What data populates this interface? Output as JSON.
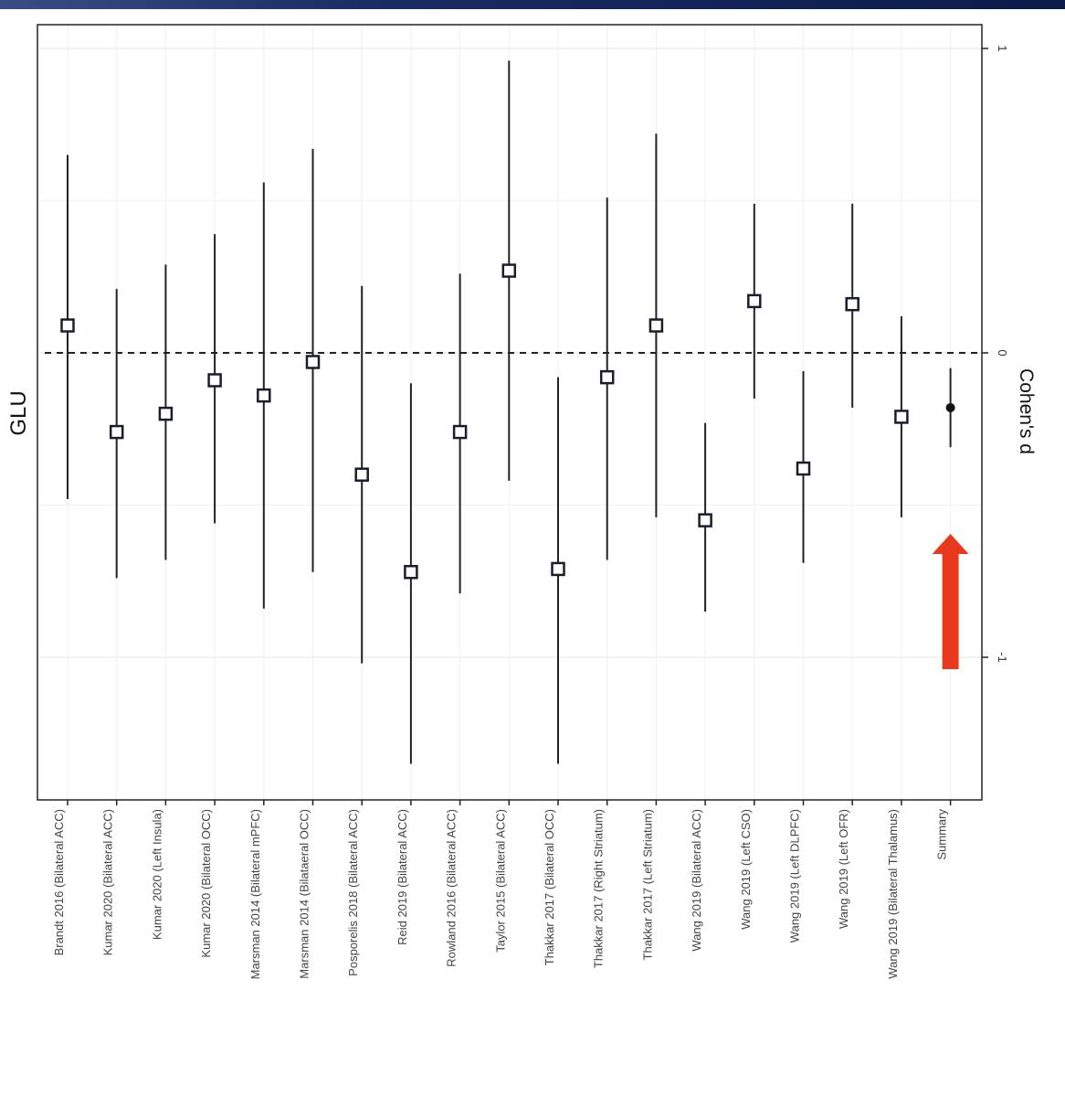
{
  "chart_data": {
    "type": "scatter",
    "subtype": "forest-plot",
    "orientation": "rotated-90-clockwise",
    "title": "GLU",
    "ylabel": "Cohen's d",
    "xlabel": "",
    "ylim": [
      -1.45,
      1.1
    ],
    "yticks": [
      1,
      0,
      -1
    ],
    "ytick_labels": [
      "1",
      "0",
      "-1"
    ],
    "reference_line": 0,
    "grid": true,
    "categories": [
      "Brandt 2016 (Bilateral ACC)",
      "Kumar 2020 (Bilateral ACC)",
      "Kumar 2020 (Left Insula)",
      "Kumar 2020 (Bilateral OCC)",
      "Marsman 2014 (Bilateral mPFC)",
      "Marsman 2014 (Bilataeral OCC)",
      "Posporelis 2018 (Bilateral ACC)",
      "Reid 2019 (Bilateral ACC)",
      "Rowland 2016 (Bilateral ACC)",
      "Taylor 2015 (Bilateral ACC)",
      "Thakkar 2017 (Bilateral OCC)",
      "Thakkar 2017 (Right Striatum)",
      "Thakkar 2017 (Left Striatum)",
      "Wang 2019 (Bilateral ACC)",
      "Wang 2019 (Left CSO)",
      "Wang 2019 (Left DLPFC)",
      "Wang 2019 (Left OFR)",
      "Wang 2019 (Bilateral Thalamus)",
      "Summary"
    ],
    "series": [
      {
        "estimate": [
          0.09,
          -0.26,
          -0.2,
          -0.09,
          -0.14,
          -0.03,
          -0.4,
          -0.72,
          -0.26,
          0.27,
          -0.71,
          -0.08,
          0.09,
          -0.55,
          0.17,
          -0.38,
          0.16,
          -0.21,
          -0.18
        ],
        "lower": [
          -0.48,
          -0.74,
          -0.68,
          -0.56,
          -0.84,
          -0.72,
          -1.02,
          -1.35,
          -0.79,
          -0.42,
          -1.35,
          -0.68,
          -0.54,
          -0.85,
          -0.15,
          -0.69,
          -0.18,
          -0.54,
          -0.31
        ],
        "upper": [
          0.65,
          0.21,
          0.29,
          0.39,
          0.56,
          0.67,
          0.22,
          -0.1,
          0.26,
          0.96,
          -0.08,
          0.51,
          0.72,
          -0.23,
          0.49,
          -0.06,
          0.49,
          0.12,
          -0.05
        ],
        "marker": [
          "square",
          "square",
          "square",
          "square",
          "square",
          "square",
          "square",
          "square",
          "square",
          "square",
          "square",
          "square",
          "square",
          "square",
          "square",
          "square",
          "square",
          "square",
          "dot"
        ]
      }
    ]
  },
  "annotations": {
    "arrow_color": "#e8391f",
    "arrow_points_to": "Summary"
  },
  "colors": {
    "top_band": "#1b2b64",
    "marker_stroke": "#1a1d2e",
    "line": "#222222"
  }
}
